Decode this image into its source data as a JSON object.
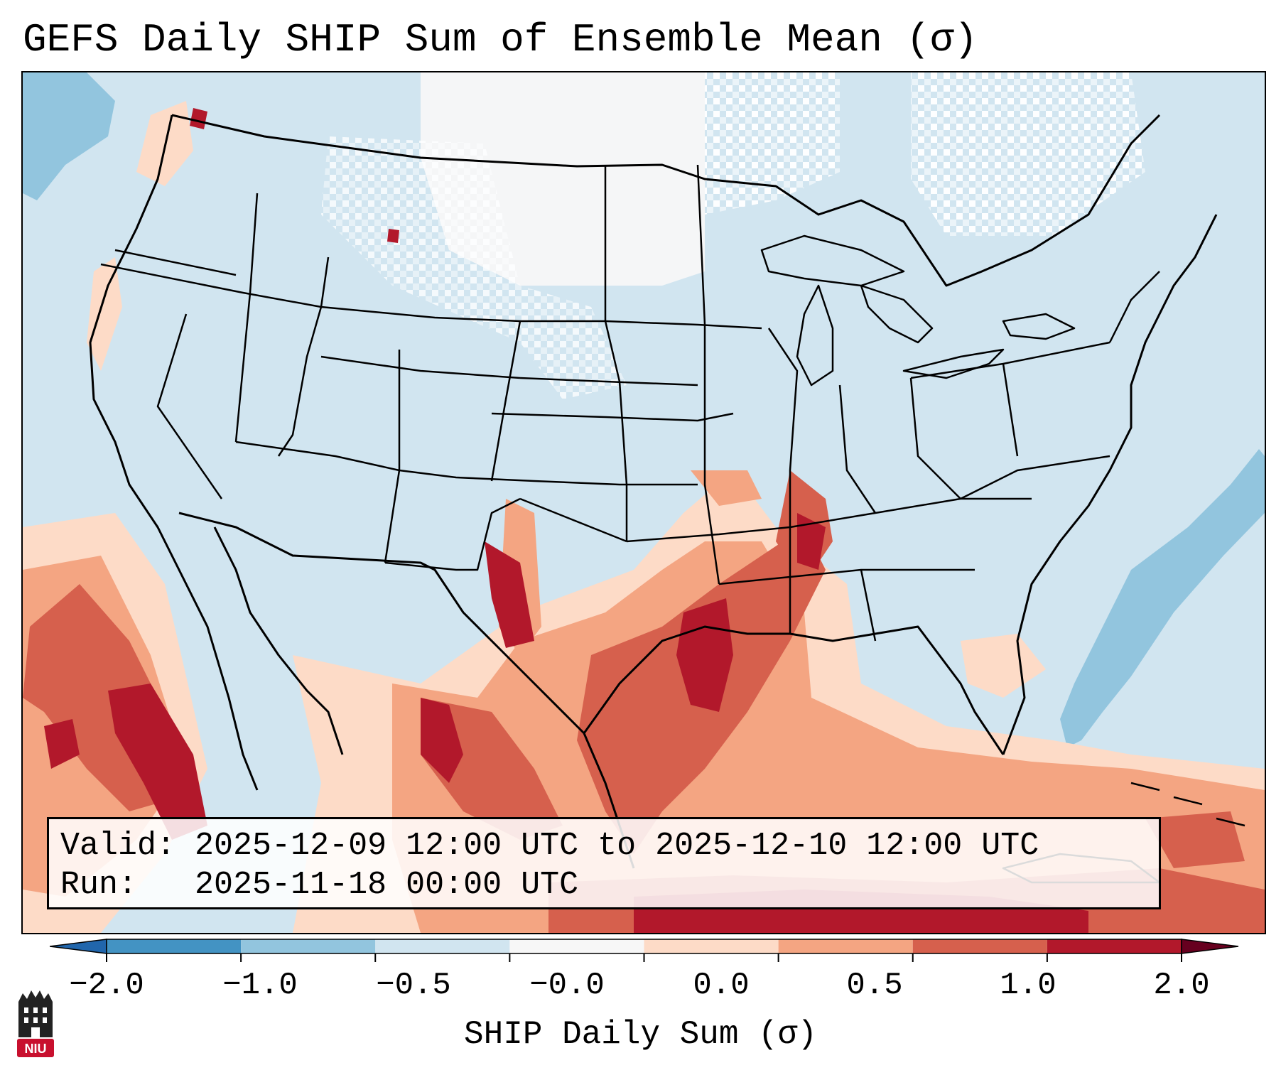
{
  "title": "GEFS Daily SHIP Sum of Ensemble Mean (σ)",
  "info": {
    "valid_label": "Valid:",
    "valid_value": "2025-12-09 12:00 UTC to 2025-12-10 12:00 UTC",
    "run_label": "Run:",
    "run_value": "2025-11-18 00:00 UTC"
  },
  "colorbar": {
    "label": "SHIP Daily Sum (σ)",
    "ticks": [
      "−2.0",
      "−1.0",
      "−0.5",
      "−0.0",
      "0.0",
      "0.5",
      "1.0",
      "2.0"
    ],
    "colors": [
      "#4393c3",
      "#92c5de",
      "#d1e5f0",
      "#f7f7f7",
      "#fddbc7",
      "#f4a582",
      "#d6604d",
      "#b2182b"
    ],
    "extend": "both"
  },
  "logo": {
    "text": "NIU",
    "color": "#c8102e"
  },
  "map": {
    "projection": "Lambert conformal, CONUS",
    "background_color": "#d1e5f0",
    "features": [
      "state-borders",
      "coastlines",
      "country-borders",
      "great-lakes"
    ],
    "anomaly_regions": [
      "positive anomaly over Texas, Louisiana, Arkansas and the Mississippi Valley",
      "strongest positive anomaly over eastern Texas and the Red River",
      "positive anomaly over the Gulf of Mexico and northwestern Mexico",
      "positive anomaly over the eastern Pacific off Baja California",
      "negative anomaly over the western Atlantic off the Carolinas",
      "near-zero values over the northern Plains and southern Canada"
    ]
  }
}
